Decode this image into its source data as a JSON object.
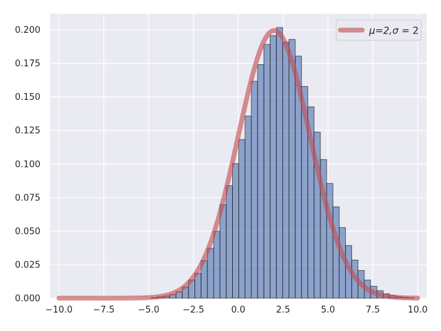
{
  "chart_data": {
    "type": "bar",
    "title": "",
    "xlabel": "",
    "ylabel": "",
    "xlim": [
      -10.5,
      10.5
    ],
    "ylim": [
      0,
      0.212
    ],
    "grid": true,
    "legend_position": "top-right",
    "xticks": [
      {
        "value": -10,
        "label": "−10.0"
      },
      {
        "value": -7.5,
        "label": "−7.5"
      },
      {
        "value": -5,
        "label": "−5.0"
      },
      {
        "value": -2.5,
        "label": "−2.5"
      },
      {
        "value": 0,
        "label": "0.0"
      },
      {
        "value": 2.5,
        "label": "2.5"
      },
      {
        "value": 5,
        "label": "5.0"
      },
      {
        "value": 7.5,
        "label": "7.5"
      },
      {
        "value": 10,
        "label": "10.0"
      }
    ],
    "yticks": [
      {
        "value": 0,
        "label": "0.000"
      },
      {
        "value": 0.025,
        "label": "0.025"
      },
      {
        "value": 0.05,
        "label": "0.050"
      },
      {
        "value": 0.075,
        "label": "0.075"
      },
      {
        "value": 0.1,
        "label": "0.100"
      },
      {
        "value": 0.125,
        "label": "0.125"
      },
      {
        "value": 0.15,
        "label": "0.150"
      },
      {
        "value": 0.175,
        "label": "0.175"
      },
      {
        "value": 0.2,
        "label": "0.200"
      }
    ],
    "histogram": {
      "name": "",
      "color": "#4c72b0",
      "bins_start": -4.875,
      "bin_width": 0.35,
      "values": [
        0.0004,
        0.0011,
        0.0016,
        0.0028,
        0.0048,
        0.0083,
        0.0136,
        0.0186,
        0.0281,
        0.0372,
        0.0499,
        0.0697,
        0.0838,
        0.1003,
        0.1182,
        0.1357,
        0.1616,
        0.1741,
        0.1891,
        0.1957,
        0.2017,
        0.1908,
        0.1928,
        0.1804,
        0.1577,
        0.1426,
        0.1238,
        0.1033,
        0.0855,
        0.0681,
        0.0526,
        0.0392,
        0.0284,
        0.0206,
        0.0135,
        0.0089,
        0.0056,
        0.0033,
        0.0021,
        0.0012,
        0.0006,
        0.0003
      ]
    },
    "series": [
      {
        "name": "μ=2,σ = 2",
        "type": "line",
        "color": "#c44e52",
        "distribution": "normal",
        "mu": 2,
        "sigma": 2,
        "x_range": [
          -10,
          10
        ]
      }
    ],
    "legend": {
      "label_prefix": "μ=2,",
      "label_sigma": "σ",
      "label_suffix": " = 2"
    }
  }
}
